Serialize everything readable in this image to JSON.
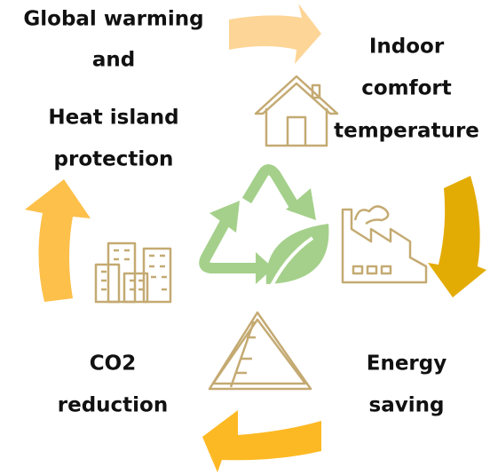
{
  "cycle": {
    "global_warming": [
      "Global warming",
      "and"
    ],
    "heat_island": [
      "Heat island",
      "protection"
    ],
    "indoor_comfort": [
      "Indoor",
      "comfort",
      "temperature"
    ],
    "energy_saving": [
      "Energy",
      "saving"
    ],
    "co2_reduction": [
      "CO2",
      "reduction"
    ]
  }
}
